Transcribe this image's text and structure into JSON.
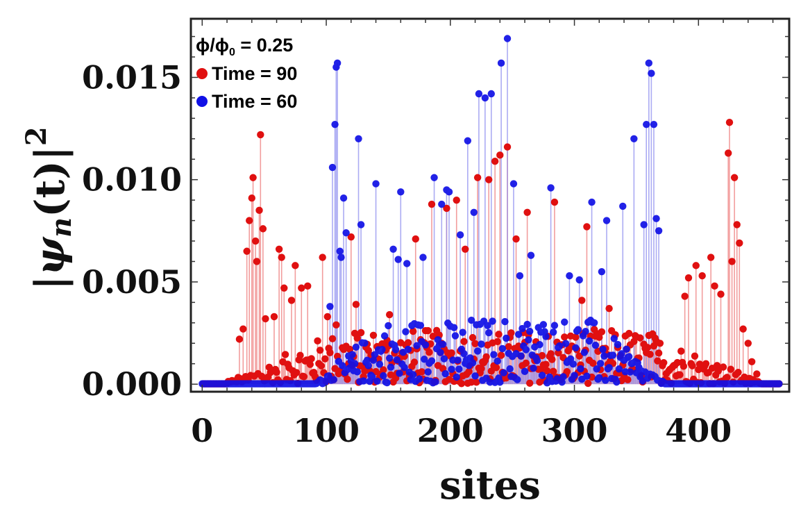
{
  "chart_data": {
    "type": "scatter",
    "style": "stem",
    "title": "",
    "xlabel": "sites",
    "ylabel": {
      "lead": "|",
      "psi": "ψ",
      "sub": "n",
      "tail": "(t)|",
      "sup": "2"
    },
    "xlim": [
      -8,
      472
    ],
    "ylim": [
      -0.0003,
      0.0178
    ],
    "x_ticks": [
      0,
      100,
      200,
      300,
      400
    ],
    "x_tick_labels": [
      "0",
      "100",
      "200",
      "300",
      "400"
    ],
    "y_ticks": [
      0.0,
      0.005,
      0.01,
      0.015
    ],
    "y_tick_labels": [
      "0.000",
      "0.005",
      "0.010",
      "0.015"
    ],
    "grid": false,
    "annotation": {
      "phi": "ϕ",
      "phi0": "ϕ",
      "phi0_sub": "0",
      "relation": " = 0.25"
    },
    "legend_position": "top-left",
    "series": [
      {
        "name": "Time = 90",
        "color": "#e01010",
        "stem_color": "#f08c8c",
        "x_range": [
          1,
          465
        ],
        "peaks": [
          [
            30,
            0.0022
          ],
          [
            33,
            0.0027
          ],
          [
            36,
            0.0065
          ],
          [
            38,
            0.008
          ],
          [
            40,
            0.0091
          ],
          [
            41,
            0.0101
          ],
          [
            43,
            0.007
          ],
          [
            44,
            0.006
          ],
          [
            46,
            0.0085
          ],
          [
            47,
            0.0122
          ],
          [
            49,
            0.0076
          ],
          [
            51,
            0.0032
          ],
          [
            58,
            0.0033
          ],
          [
            62,
            0.0066
          ],
          [
            64,
            0.0062
          ],
          [
            66,
            0.0047
          ],
          [
            72,
            0.0041
          ],
          [
            75,
            0.0058
          ],
          [
            80,
            0.0047
          ],
          [
            85,
            0.0048
          ],
          [
            97,
            0.0062
          ],
          [
            101,
            0.0033
          ],
          [
            108,
            0.0029
          ],
          [
            120,
            0.0072
          ],
          [
            124,
            0.0039
          ],
          [
            151,
            0.0034
          ],
          [
            172,
            0.0071
          ],
          [
            185,
            0.0088
          ],
          [
            197,
            0.0086
          ],
          [
            205,
            0.009
          ],
          [
            212,
            0.0066
          ],
          [
            222,
            0.0101
          ],
          [
            231,
            0.01
          ],
          [
            236,
            0.0109
          ],
          [
            240,
            0.0112
          ],
          [
            246,
            0.0116
          ],
          [
            253,
            0.0071
          ],
          [
            262,
            0.0084
          ],
          [
            284,
            0.0089
          ],
          [
            306,
            0.0041
          ],
          [
            310,
            0.0077
          ],
          [
            328,
            0.0037
          ],
          [
            389,
            0.0043
          ],
          [
            392,
            0.0052
          ],
          [
            398,
            0.0058
          ],
          [
            403,
            0.0053
          ],
          [
            410,
            0.0062
          ],
          [
            413,
            0.0048
          ],
          [
            418,
            0.0044
          ],
          [
            424,
            0.0113
          ],
          [
            425,
            0.0128
          ],
          [
            427,
            0.006
          ],
          [
            429,
            0.0101
          ],
          [
            431,
            0.0078
          ],
          [
            433,
            0.0069
          ],
          [
            436,
            0.0027
          ],
          [
            440,
            0.002
          ],
          [
            443,
            0.0011
          ],
          [
            447,
            0.0005
          ]
        ],
        "envelope": {
          "start": 20,
          "end": 450,
          "level": 0.0026
        },
        "dense_x_range": [
          20,
          450
        ]
      },
      {
        "name": "Time = 60",
        "color": "#1010e6",
        "stem_color": "#8f8ff0",
        "x_range": [
          0,
          465
        ],
        "peaks": [
          [
            103,
            0.0038
          ],
          [
            105,
            0.0106
          ],
          [
            107,
            0.0127
          ],
          [
            108,
            0.0155
          ],
          [
            109,
            0.0157
          ],
          [
            111,
            0.0065
          ],
          [
            112,
            0.0062
          ],
          [
            114,
            0.0091
          ],
          [
            116,
            0.0074
          ],
          [
            126,
            0.012
          ],
          [
            128,
            0.0078
          ],
          [
            140,
            0.0098
          ],
          [
            154,
            0.0066
          ],
          [
            158,
            0.0061
          ],
          [
            165,
            0.0059
          ],
          [
            160,
            0.0094
          ],
          [
            178,
            0.0062
          ],
          [
            187,
            0.0101
          ],
          [
            193,
            0.0088
          ],
          [
            197,
            0.0095
          ],
          [
            199,
            0.0094
          ],
          [
            208,
            0.0073
          ],
          [
            214,
            0.0119
          ],
          [
            219,
            0.0084
          ],
          [
            223,
            0.0142
          ],
          [
            228,
            0.014
          ],
          [
            233,
            0.0142
          ],
          [
            241,
            0.0157
          ],
          [
            246,
            0.0169
          ],
          [
            251,
            0.0098
          ],
          [
            256,
            0.0053
          ],
          [
            265,
            0.0063
          ],
          [
            281,
            0.0096
          ],
          [
            296,
            0.0053
          ],
          [
            304,
            0.0051
          ],
          [
            314,
            0.0089
          ],
          [
            322,
            0.0055
          ],
          [
            326,
            0.008
          ],
          [
            339,
            0.0087
          ],
          [
            348,
            0.012
          ],
          [
            356,
            0.0078
          ],
          [
            358,
            0.0127
          ],
          [
            360,
            0.0157
          ],
          [
            362,
            0.0152
          ],
          [
            364,
            0.0127
          ],
          [
            366,
            0.0081
          ],
          [
            368,
            0.0075
          ]
        ],
        "envelope": {
          "start": 92,
          "end": 372,
          "level": 0.0032
        },
        "dense_x_range": [
          90,
          375
        ]
      }
    ]
  }
}
